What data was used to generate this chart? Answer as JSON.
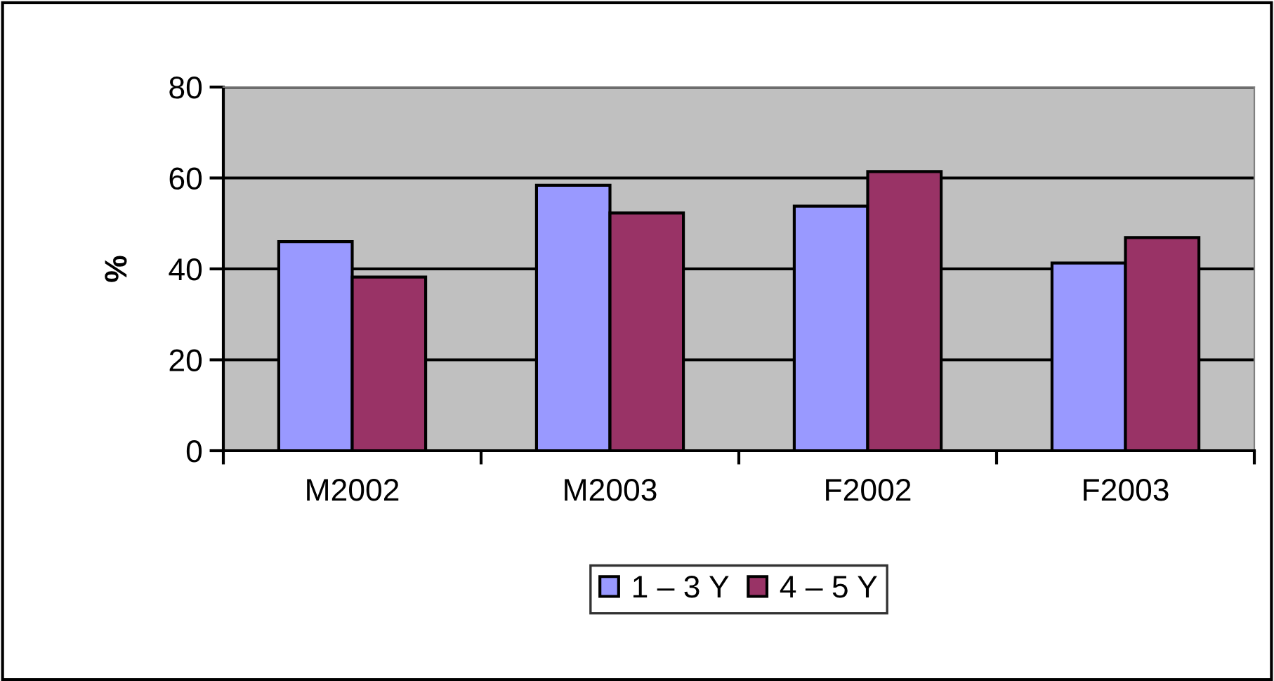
{
  "chart_data": {
    "type": "bar",
    "ylabel": "%",
    "categories": [
      "M2002",
      "M2003",
      "F2002",
      "F2003"
    ],
    "series": [
      {
        "name": "1 – 3 Y",
        "color": "#9999ff",
        "values": [
          46.0,
          58.4,
          53.8,
          41.3
        ]
      },
      {
        "name": "4 – 5 Y",
        "color": "#993366",
        "values": [
          38.2,
          52.3,
          61.4,
          46.9
        ]
      }
    ],
    "ylim": [
      0,
      80
    ],
    "yticks": [
      0,
      20,
      40,
      60,
      80
    ],
    "grid": "y",
    "legend": "bottom"
  }
}
